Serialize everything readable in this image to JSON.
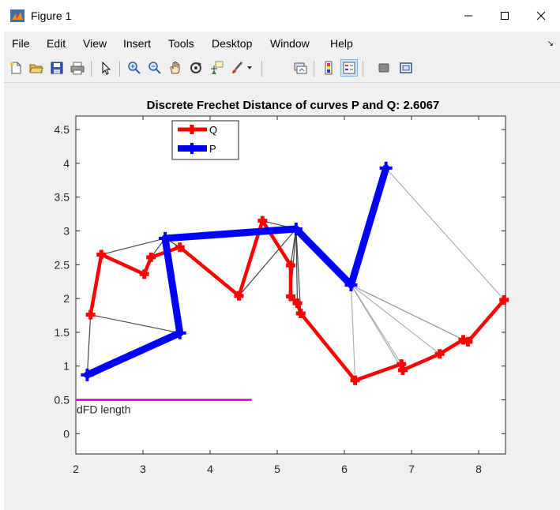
{
  "window": {
    "title": "Figure 1"
  },
  "menu": [
    "File",
    "Edit",
    "View",
    "Insert",
    "Tools",
    "Desktop",
    "Window",
    "Help"
  ],
  "toolbar_icons": [
    "new-figure-icon",
    "open-file-icon",
    "save-icon",
    "print-icon",
    "select-arrow-icon",
    "zoom-in-icon",
    "zoom-out-icon",
    "pan-hand-icon",
    "rotate-3d-icon",
    "data-cursor-icon",
    "brush-icon",
    "brush-dropdown-icon",
    "link-plot-icon",
    "colorbar-icon",
    "legend-icon",
    "hide-plot-tools-icon",
    "show-plot-tools-icon"
  ],
  "colors": {
    "Q": "#ff0000",
    "P": "#0000ff",
    "dFD": "#ff00ff",
    "link": "#333333"
  },
  "chart_data": {
    "type": "line",
    "title": "Discrete Frechet Distance of curves P and Q: 2.6067",
    "xlim": [
      2,
      8.4
    ],
    "ylim": [
      -0.3,
      4.7
    ],
    "xticks": [
      "2",
      "3",
      "4",
      "5",
      "6",
      "7",
      "8"
    ],
    "yticks": [
      "0",
      "0.5",
      "1",
      "1.5",
      "2",
      "2.5",
      "3",
      "3.5",
      "4",
      "4.5"
    ],
    "legend": {
      "position": "top-left",
      "entries": [
        "Q",
        "P"
      ]
    },
    "series": [
      {
        "name": "Q",
        "color": "#ff0000",
        "marker": "plus",
        "points": [
          [
            2.22,
            1.76
          ],
          [
            2.38,
            2.65
          ],
          [
            3.02,
            2.36
          ],
          [
            3.12,
            2.61
          ],
          [
            3.55,
            2.76
          ],
          [
            4.43,
            2.04
          ],
          [
            4.78,
            3.15
          ],
          [
            5.2,
            2.49
          ],
          [
            5.2,
            2.03
          ],
          [
            5.3,
            1.93
          ],
          [
            5.35,
            1.78
          ],
          [
            6.16,
            0.79
          ],
          [
            6.85,
            1.03
          ],
          [
            6.87,
            0.94
          ],
          [
            7.42,
            1.18
          ],
          [
            7.77,
            1.39
          ],
          [
            7.84,
            1.36
          ],
          [
            8.38,
            1.98
          ]
        ]
      },
      {
        "name": "P",
        "color": "#0000ff",
        "marker": "plus",
        "points": [
          [
            2.17,
            0.87
          ],
          [
            3.55,
            1.49
          ],
          [
            3.33,
            2.89
          ],
          [
            5.28,
            3.03
          ],
          [
            6.1,
            2.2
          ],
          [
            6.62,
            3.93
          ]
        ]
      }
    ],
    "links": [
      [
        [
          2.17,
          0.87
        ],
        [
          2.22,
          1.76
        ]
      ],
      [
        [
          2.22,
          1.76
        ],
        [
          3.55,
          1.49
        ]
      ],
      [
        [
          3.33,
          2.89
        ],
        [
          2.38,
          2.65
        ]
      ],
      [
        [
          3.33,
          2.89
        ],
        [
          3.12,
          2.61
        ]
      ],
      [
        [
          3.33,
          2.89
        ],
        [
          3.55,
          2.76
        ]
      ],
      [
        [
          5.28,
          3.03
        ],
        [
          4.43,
          2.04
        ]
      ],
      [
        [
          5.28,
          3.03
        ],
        [
          4.78,
          3.15
        ]
      ],
      [
        [
          5.28,
          3.03
        ],
        [
          5.2,
          2.49
        ]
      ],
      [
        [
          5.28,
          3.03
        ],
        [
          5.2,
          2.03
        ]
      ],
      [
        [
          5.28,
          3.03
        ],
        [
          5.3,
          1.93
        ]
      ],
      [
        [
          5.28,
          3.03
        ],
        [
          5.35,
          1.78
        ]
      ],
      [
        [
          6.1,
          2.2
        ],
        [
          6.16,
          0.79
        ]
      ],
      [
        [
          6.1,
          2.2
        ],
        [
          6.85,
          1.03
        ]
      ],
      [
        [
          6.1,
          2.2
        ],
        [
          6.87,
          0.94
        ]
      ],
      [
        [
          6.1,
          2.2
        ],
        [
          7.42,
          1.18
        ]
      ],
      [
        [
          6.1,
          2.2
        ],
        [
          7.77,
          1.39
        ]
      ],
      [
        [
          6.1,
          2.2
        ],
        [
          7.84,
          1.36
        ]
      ],
      [
        [
          6.62,
          3.93
        ],
        [
          8.38,
          1.98
        ]
      ]
    ],
    "dfd_line": {
      "x": [
        2,
        4.62
      ],
      "y": 0.5,
      "color": "#ff00ff",
      "label": "dFD length"
    }
  }
}
